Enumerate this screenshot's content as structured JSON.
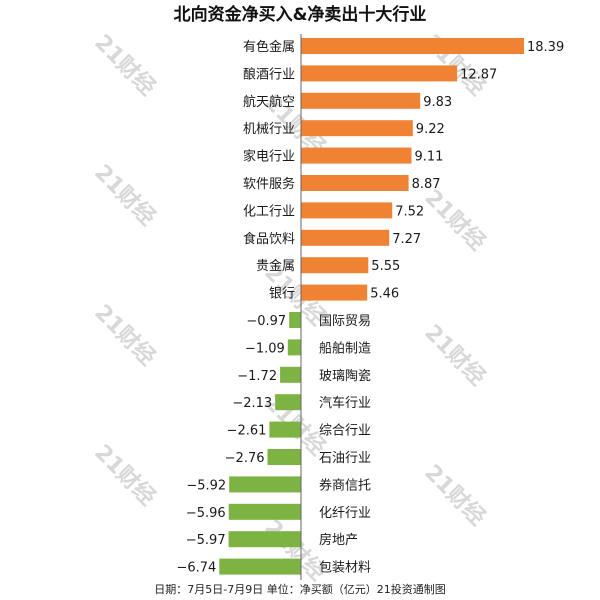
{
  "chart_data": {
    "type": "bar",
    "orientation": "horizontal",
    "title": "北向资金净买入&净卖出十大行业",
    "categories": [
      "有色金属",
      "酿酒行业",
      "航天航空",
      "机械行业",
      "家电行业",
      "软件服务",
      "化工行业",
      "食品饮料",
      "贵金属",
      "银行",
      "国际贸易",
      "船舶制造",
      "玻璃陶瓷",
      "汽车行业",
      "综合行业",
      "石油行业",
      "券商信托",
      "化纤行业",
      "房地产",
      "包装材料"
    ],
    "values": [
      18.39,
      12.87,
      9.83,
      9.22,
      9.11,
      8.87,
      7.52,
      7.27,
      5.55,
      5.46,
      -0.97,
      -1.09,
      -1.72,
      -2.13,
      -2.61,
      -2.76,
      -5.92,
      -5.96,
      -5.97,
      -6.74
    ],
    "value_labels": [
      "18.39",
      "12.87",
      "9.83",
      "9.22",
      "9.11",
      "8.87",
      "7.52",
      "7.27",
      "5.55",
      "5.46",
      "−0.97",
      "−1.09",
      "−1.72",
      "−2.13",
      "−2.61",
      "−2.76",
      "−5.92",
      "−5.96",
      "−5.97",
      "−6.74"
    ],
    "colors": {
      "positive": "#f08234",
      "negative": "#7cb342",
      "axis": "#666666"
    },
    "footnote": "日期：7月5日-7月9日 单位：净买额（亿元）21投资通制图",
    "watermark": "21财经"
  }
}
